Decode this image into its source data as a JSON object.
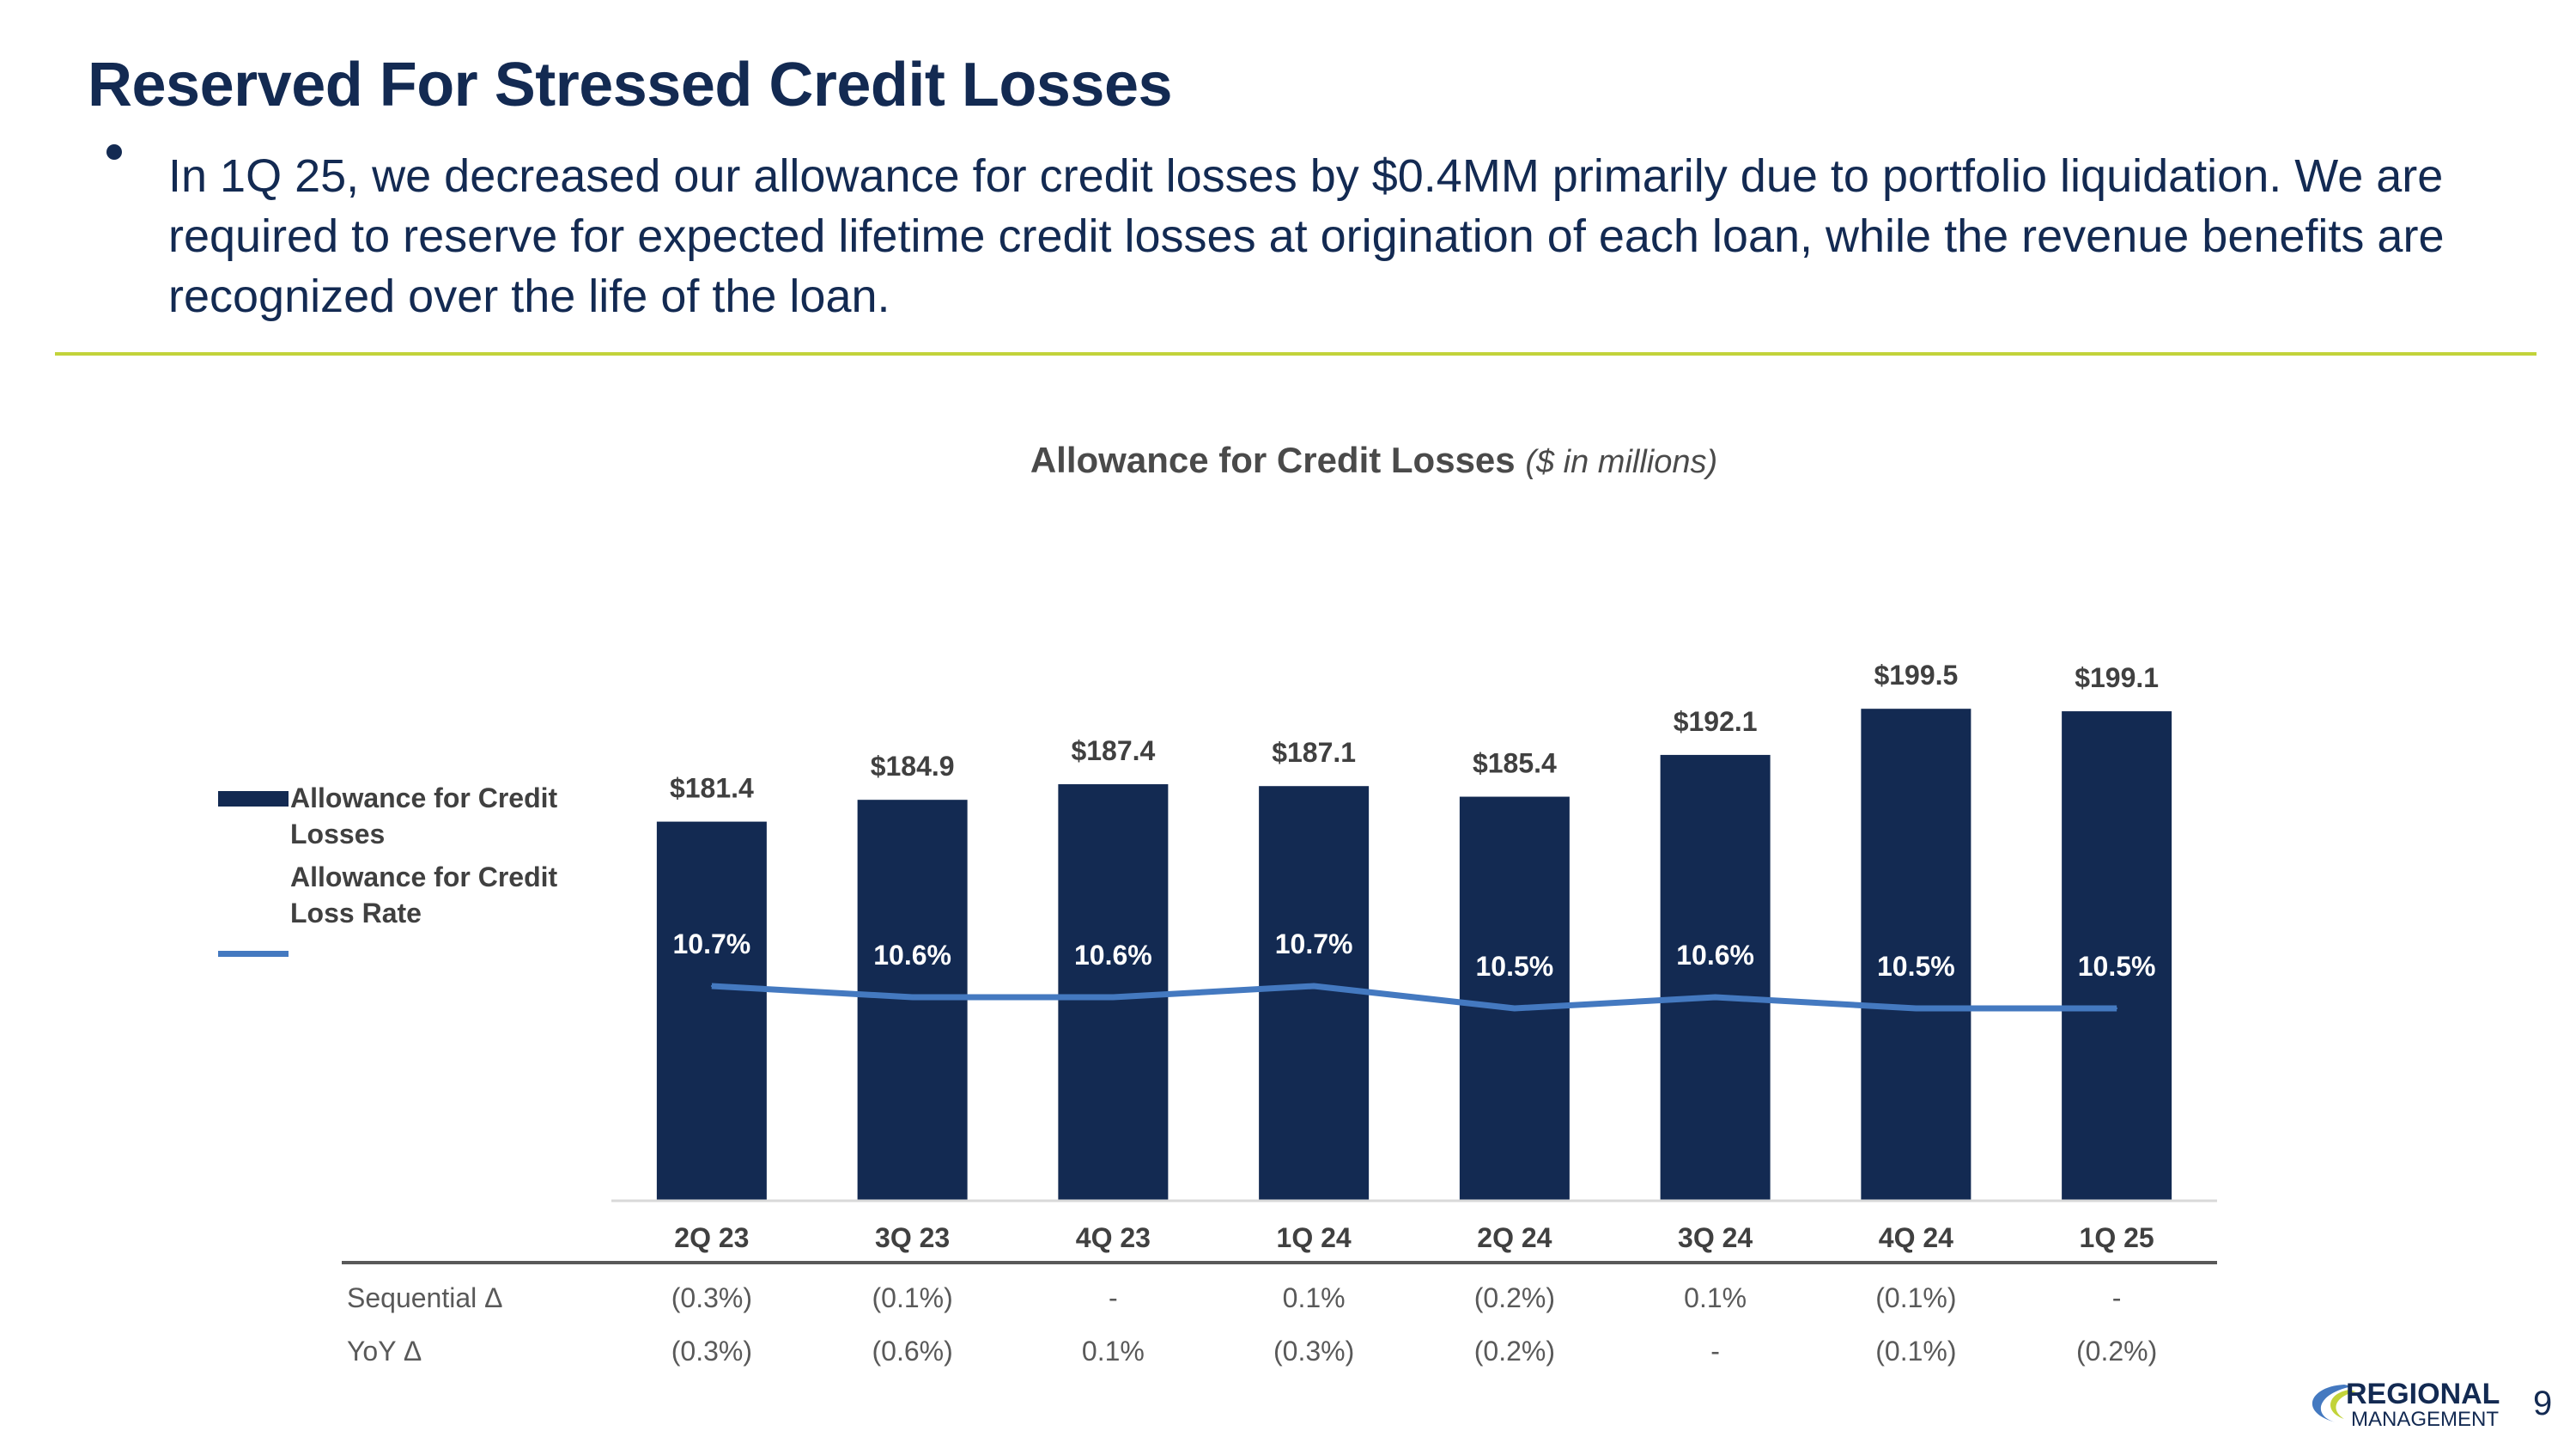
{
  "slide": {
    "title": "Reserved For Stressed Credit Losses",
    "bullet": "In 1Q 25, we decreased our allowance for credit losses by $0.4MM primarily due to portfolio liquidation. We are required to reserve for expected lifetime credit losses at origination of each loan, while the revenue benefits are recognized over the life of the loan.",
    "page_number": "9",
    "logo_top": "REGIONAL",
    "logo_bottom": "MANAGEMENT"
  },
  "colors": {
    "bar": "#132a52",
    "line": "#4479c0",
    "accent_rule": "#c2d33a"
  },
  "chart_data": {
    "type": "bar",
    "title": "Allowance for Credit Losses",
    "subtitle": "($ in millions)",
    "categories": [
      "2Q 23",
      "3Q 23",
      "4Q 23",
      "1Q 24",
      "2Q 24",
      "3Q 24",
      "4Q 24",
      "1Q 25"
    ],
    "series": [
      {
        "name": "Allowance for Credit Losses",
        "type": "bar",
        "values": [
          181.4,
          184.9,
          187.4,
          187.1,
          185.4,
          192.1,
          199.5,
          199.1
        ],
        "labels": [
          "$181.4",
          "$184.9",
          "$187.4",
          "$187.1",
          "$185.4",
          "$192.1",
          "$199.5",
          "$199.1"
        ]
      },
      {
        "name": "Allowance for Credit Loss Rate",
        "type": "line",
        "values": [
          10.7,
          10.6,
          10.6,
          10.7,
          10.5,
          10.6,
          10.5,
          10.5
        ],
        "labels": [
          "10.7%",
          "10.6%",
          "10.6%",
          "10.7%",
          "10.5%",
          "10.6%",
          "10.5%",
          "10.5%"
        ]
      }
    ],
    "legend": [
      "Allowance for Credit Losses",
      "Allowance for Credit Loss Rate"
    ],
    "legend_position": "left",
    "table": [
      {
        "label": "Sequential Δ",
        "values": [
          "(0.3%)",
          "(0.1%)",
          "-",
          "0.1%",
          "(0.2%)",
          "0.1%",
          "(0.1%)",
          "-"
        ]
      },
      {
        "label": "YoY Δ",
        "values": [
          "(0.3%)",
          "(0.6%)",
          "0.1%",
          "(0.3%)",
          "(0.2%)",
          "-",
          "(0.1%)",
          "(0.2%)"
        ]
      }
    ]
  }
}
